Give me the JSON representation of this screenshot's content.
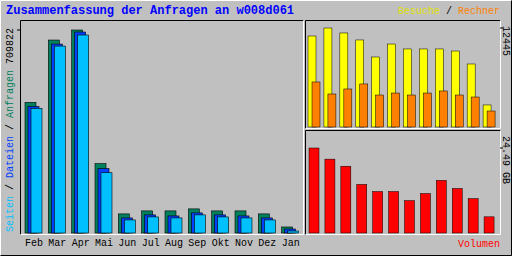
{
  "separator": "/",
  "chart_data": [
    {
      "type": "bar",
      "title": "Zusammenfassung der Anfragen an w008d061",
      "categories": [
        "Feb",
        "Mar",
        "Apr",
        "Mai",
        "Jun",
        "Jul",
        "Aug",
        "Sep",
        "Okt",
        "Nov",
        "Dez",
        "Jan"
      ],
      "series": [
        {
          "name": "Seiten",
          "color": "#00c0ff",
          "values": [
            435700,
            653600,
            692300,
            210800,
            45700,
            56200,
            52700,
            63300,
            56200,
            52700,
            45700,
            7000
          ]
        },
        {
          "name": "Dateien",
          "color": "#0040ff",
          "values": [
            442700,
            660600,
            702800,
            224900,
            52700,
            63300,
            59700,
            70300,
            63300,
            59700,
            52700,
            14000
          ]
        },
        {
          "name": "Anfragen",
          "color": "#00805c",
          "values": [
            456800,
            674700,
            709822,
            242500,
            66800,
            77300,
            77300,
            84300,
            77300,
            77300,
            66800,
            21100
          ]
        }
      ],
      "ylim": [
        0,
        709822
      ],
      "yticks": [
        709822
      ]
    },
    {
      "type": "bar",
      "series": [
        {
          "name": "Besuche",
          "color": "#ffff00",
          "values": [
            11440,
            12445,
            11820,
            10940,
            8800,
            10430,
            9810,
            9810,
            9810,
            9550,
            7920,
            2770
          ]
        },
        {
          "name": "Rechner",
          "color": "#ff8000",
          "values": [
            5660,
            4150,
            4780,
            5410,
            4020,
            4270,
            4020,
            4270,
            4530,
            4020,
            3770,
            2010
          ]
        }
      ],
      "ylim": [
        0,
        12445
      ],
      "yticks": [
        12445
      ]
    },
    {
      "type": "bar",
      "series": [
        {
          "name": "Volumen",
          "color": "#ff0000",
          "values": [
            24.49,
            21.28,
            19.24,
            14.0,
            11.95,
            11.95,
            9.33,
            11.37,
            15.16,
            12.83,
            9.91,
            4.66
          ]
        }
      ],
      "ylim": [
        0,
        24.49
      ],
      "yticks": [
        {
          "value": 24.49,
          "label": "24.49 GB"
        }
      ]
    }
  ]
}
